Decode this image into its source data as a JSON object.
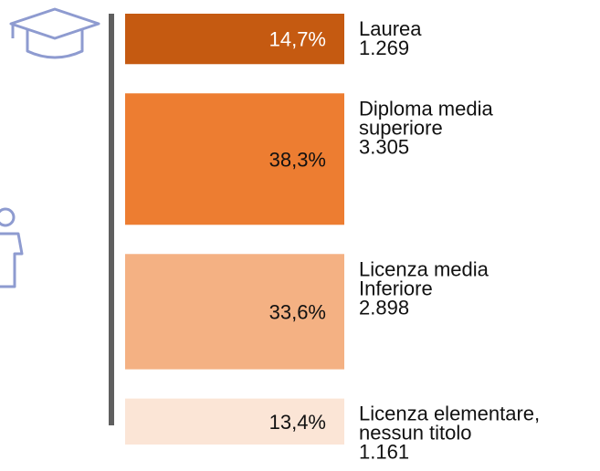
{
  "chart_data": {
    "type": "stacked-boxes",
    "categories": [
      [
        "Laurea"
      ],
      [
        "Diploma media",
        "superiore"
      ],
      [
        "Licenza media",
        "Inferiore"
      ],
      [
        "Licenza elementare,",
        "nessun titolo"
      ]
    ],
    "values": [
      14.7,
      38.3,
      33.6,
      13.4
    ],
    "value_labels": [
      "14,7%",
      "38,3%",
      "33,6%",
      "13,4%"
    ],
    "counts": [
      1269,
      3305,
      2898,
      1161
    ],
    "count_labels": [
      "1.269",
      "3.305",
      "2.898",
      "1.161"
    ],
    "colors": [
      "#c55a11",
      "#ed7d31",
      "#f4b183",
      "#fbe5d6"
    ],
    "value_label_colors": [
      "#ffffff",
      "#111111",
      "#111111",
      "#111111"
    ]
  }
}
